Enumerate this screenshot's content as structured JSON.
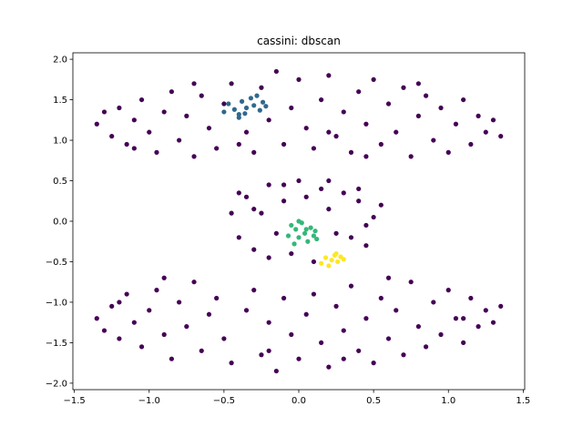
{
  "chart_data": {
    "type": "scatter",
    "title": "cassini: dbscan",
    "xlabel": "",
    "ylabel": "",
    "xlim": [
      -1.51,
      1.51
    ],
    "ylim": [
      -2.08,
      2.08
    ],
    "x_ticks": [
      -1.5,
      -1.0,
      -0.5,
      0.0,
      0.5,
      1.0,
      1.5
    ],
    "x_tick_labels": [
      "−1.5",
      "−1.0",
      "−0.5",
      "0.0",
      "0.5",
      "1.0",
      "1.5"
    ],
    "y_ticks": [
      -2.0,
      -1.5,
      -1.0,
      -0.5,
      0.0,
      0.5,
      1.0,
      1.5,
      2.0
    ],
    "y_tick_labels": [
      "−2.0",
      "−1.5",
      "−1.0",
      "−0.5",
      "0.0",
      "0.5",
      "1.0",
      "1.5",
      "2.0"
    ],
    "grid": false,
    "legend": false,
    "series": [
      {
        "color": "#440154",
        "points": [
          [
            -1.35,
            1.2
          ],
          [
            -1.3,
            1.35
          ],
          [
            -1.25,
            1.05
          ],
          [
            -1.2,
            1.4
          ],
          [
            -1.15,
            0.95
          ],
          [
            -1.1,
            1.25
          ],
          [
            -1.05,
            1.5
          ],
          [
            -1.0,
            1.1
          ],
          [
            -0.95,
            0.85
          ],
          [
            -0.9,
            1.35
          ],
          [
            -0.85,
            1.6
          ],
          [
            -0.8,
            1.0
          ],
          [
            -0.75,
            1.3
          ],
          [
            -0.7,
            0.8
          ],
          [
            -0.65,
            1.55
          ],
          [
            -0.6,
            1.15
          ],
          [
            -0.55,
            0.9
          ],
          [
            -0.5,
            1.45
          ],
          [
            -0.45,
            1.7
          ],
          [
            -0.35,
            1.1
          ],
          [
            -0.3,
            0.85
          ],
          [
            -0.25,
            1.65
          ],
          [
            -0.2,
            1.25
          ],
          [
            -0.15,
            1.85
          ],
          [
            -0.1,
            0.95
          ],
          [
            -0.05,
            1.4
          ],
          [
            0.0,
            1.75
          ],
          [
            0.05,
            1.15
          ],
          [
            0.1,
            0.9
          ],
          [
            0.15,
            1.5
          ],
          [
            0.2,
            1.8
          ],
          [
            0.25,
            1.05
          ],
          [
            0.3,
            1.35
          ],
          [
            0.35,
            0.85
          ],
          [
            0.4,
            1.6
          ],
          [
            0.45,
            1.2
          ],
          [
            0.5,
            1.75
          ],
          [
            0.55,
            0.95
          ],
          [
            0.6,
            1.45
          ],
          [
            0.65,
            1.1
          ],
          [
            0.7,
            1.65
          ],
          [
            0.75,
            0.8
          ],
          [
            0.8,
            1.3
          ],
          [
            0.85,
            1.55
          ],
          [
            0.9,
            1.0
          ],
          [
            0.95,
            1.4
          ],
          [
            1.0,
            0.85
          ],
          [
            1.05,
            1.2
          ],
          [
            1.1,
            1.5
          ],
          [
            1.15,
            0.95
          ],
          [
            1.2,
            1.3
          ],
          [
            1.25,
            1.1
          ],
          [
            1.3,
            1.25
          ],
          [
            1.35,
            1.05
          ],
          [
            -1.1,
            0.9
          ],
          [
            -0.4,
            0.95
          ],
          [
            0.2,
            1.1
          ],
          [
            0.8,
            1.7
          ],
          [
            -0.7,
            1.7
          ],
          [
            0.45,
            0.8
          ],
          [
            -1.35,
            -1.2
          ],
          [
            -1.3,
            -1.35
          ],
          [
            -1.25,
            -1.05
          ],
          [
            -1.2,
            -1.45
          ],
          [
            -1.15,
            -0.9
          ],
          [
            -1.1,
            -1.25
          ],
          [
            -1.05,
            -1.55
          ],
          [
            -1.0,
            -1.1
          ],
          [
            -0.95,
            -0.85
          ],
          [
            -0.9,
            -1.4
          ],
          [
            -0.85,
            -1.7
          ],
          [
            -0.8,
            -1.0
          ],
          [
            -0.75,
            -1.3
          ],
          [
            -0.7,
            -0.75
          ],
          [
            -0.65,
            -1.6
          ],
          [
            -0.6,
            -1.15
          ],
          [
            -0.55,
            -0.95
          ],
          [
            -0.5,
            -1.45
          ],
          [
            -0.45,
            -1.75
          ],
          [
            -0.35,
            -1.1
          ],
          [
            -0.3,
            -0.85
          ],
          [
            -0.25,
            -1.65
          ],
          [
            -0.2,
            -1.25
          ],
          [
            -0.15,
            -1.85
          ],
          [
            -0.1,
            -0.95
          ],
          [
            -0.05,
            -1.4
          ],
          [
            0.0,
            -1.7
          ],
          [
            0.05,
            -1.15
          ],
          [
            0.1,
            -0.9
          ],
          [
            0.15,
            -1.5
          ],
          [
            0.2,
            -1.8
          ],
          [
            0.25,
            -1.05
          ],
          [
            0.3,
            -1.35
          ],
          [
            0.35,
            -0.8
          ],
          [
            0.4,
            -1.6
          ],
          [
            0.45,
            -1.2
          ],
          [
            0.5,
            -1.75
          ],
          [
            0.55,
            -0.95
          ],
          [
            0.6,
            -1.45
          ],
          [
            0.65,
            -1.1
          ],
          [
            0.7,
            -1.65
          ],
          [
            0.75,
            -0.75
          ],
          [
            0.8,
            -1.3
          ],
          [
            0.85,
            -1.55
          ],
          [
            0.9,
            -1.0
          ],
          [
            0.95,
            -1.4
          ],
          [
            1.0,
            -0.85
          ],
          [
            1.05,
            -1.2
          ],
          [
            1.1,
            -1.5
          ],
          [
            1.15,
            -0.95
          ],
          [
            1.2,
            -1.3
          ],
          [
            1.25,
            -1.1
          ],
          [
            1.3,
            -1.25
          ],
          [
            1.35,
            -1.05
          ],
          [
            -0.9,
            -0.7
          ],
          [
            0.6,
            -0.7
          ],
          [
            -0.2,
            -1.6
          ],
          [
            0.3,
            -1.7
          ],
          [
            1.1,
            -1.2
          ],
          [
            -1.2,
            -1.0
          ],
          [
            -0.45,
            0.1
          ],
          [
            -0.4,
            -0.2
          ],
          [
            -0.35,
            0.3
          ],
          [
            -0.3,
            -0.35
          ],
          [
            -0.25,
            0.1
          ],
          [
            -0.2,
            0.45
          ],
          [
            -0.15,
            -0.15
          ],
          [
            -0.1,
            0.25
          ],
          [
            -0.05,
            -0.4
          ],
          [
            0.0,
            0.5
          ],
          [
            0.05,
            0.3
          ],
          [
            0.1,
            -0.5
          ],
          [
            0.15,
            0.4
          ],
          [
            0.2,
            0.15
          ],
          [
            0.3,
            0.35
          ],
          [
            0.35,
            -0.2
          ],
          [
            0.4,
            0.25
          ],
          [
            0.45,
            -0.3
          ],
          [
            0.5,
            0.05
          ],
          [
            0.55,
            0.2
          ],
          [
            -0.2,
            -0.45
          ],
          [
            0.25,
            -0.15
          ],
          [
            -0.4,
            0.35
          ],
          [
            0.4,
            0.4
          ],
          [
            -0.3,
            0.15
          ],
          [
            0.45,
            -0.05
          ],
          [
            0.2,
            0.5
          ],
          [
            -0.1,
            0.45
          ]
        ]
      },
      {
        "color": "#31688e",
        "points": [
          [
            -0.5,
            1.35
          ],
          [
            -0.47,
            1.45
          ],
          [
            -0.43,
            1.38
          ],
          [
            -0.4,
            1.32
          ],
          [
            -0.38,
            1.48
          ],
          [
            -0.35,
            1.4
          ],
          [
            -0.32,
            1.52
          ],
          [
            -0.3,
            1.43
          ],
          [
            -0.28,
            1.55
          ],
          [
            -0.26,
            1.37
          ],
          [
            -0.24,
            1.47
          ],
          [
            -0.22,
            1.42
          ],
          [
            -0.4,
            1.28
          ],
          [
            -0.36,
            1.33
          ]
        ]
      },
      {
        "color": "#35b779",
        "points": [
          [
            -0.05,
            -0.05
          ],
          [
            -0.02,
            -0.1
          ],
          [
            0.0,
            -0.2
          ],
          [
            0.02,
            -0.02
          ],
          [
            0.04,
            -0.15
          ],
          [
            0.06,
            -0.25
          ],
          [
            0.08,
            -0.08
          ],
          [
            0.1,
            -0.18
          ],
          [
            0.12,
            -0.22
          ],
          [
            -0.07,
            -0.18
          ],
          [
            0.0,
            0.0
          ],
          [
            0.05,
            -0.1
          ],
          [
            0.11,
            -0.12
          ],
          [
            -0.03,
            -0.28
          ]
        ]
      },
      {
        "color": "#fde725",
        "points": [
          [
            0.15,
            -0.52
          ],
          [
            0.18,
            -0.45
          ],
          [
            0.2,
            -0.55
          ],
          [
            0.22,
            -0.48
          ],
          [
            0.24,
            -0.42
          ],
          [
            0.26,
            -0.5
          ],
          [
            0.28,
            -0.44
          ],
          [
            0.3,
            -0.47
          ],
          [
            0.25,
            -0.4
          ]
        ]
      }
    ]
  }
}
